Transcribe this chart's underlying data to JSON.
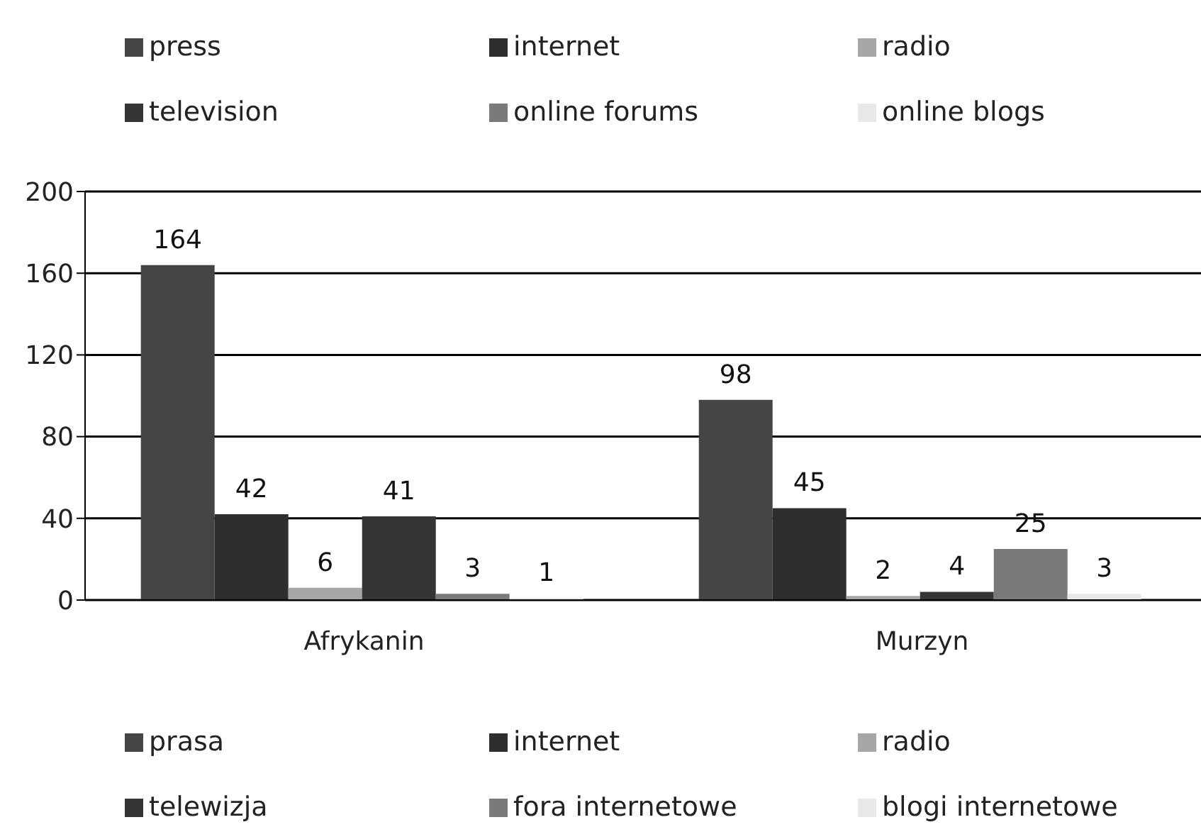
{
  "chart_data": {
    "type": "bar",
    "categories": [
      "Afrykanin",
      "Murzyn"
    ],
    "series": [
      {
        "name": "prasa",
        "color": "#454545",
        "values": [
          164,
          98
        ]
      },
      {
        "name": "internet",
        "color": "#2e2e2e",
        "values": [
          42,
          45
        ]
      },
      {
        "name": "radio",
        "color": "#a6a6a6",
        "values": [
          6,
          2
        ]
      },
      {
        "name": "telewizja",
        "color": "#353535",
        "values": [
          41,
          4
        ]
      },
      {
        "name": "fora internetowe",
        "color": "#7a7a7a",
        "values": [
          3,
          25
        ]
      },
      {
        "name": "blogi internetowe",
        "color": "#e8e8e8",
        "values": [
          1,
          3
        ]
      }
    ],
    "annotations": [
      "press",
      "internet",
      "radio",
      "television",
      "online forums",
      "online blogs"
    ],
    "ylim": [
      0,
      200
    ],
    "yticks": [
      0,
      40,
      80,
      120,
      160,
      200
    ],
    "grid": "y",
    "legend": "bottom",
    "data_labels": true
  }
}
